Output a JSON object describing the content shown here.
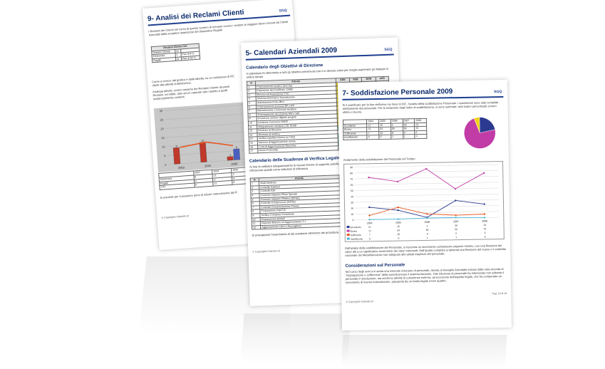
{
  "page1": {
    "title": "9- Analisi dei Reclami Clienti",
    "logo": "SGQ",
    "intro": "I Reclami dei Clienti nel corso di questo numero di mesane ovvero i reclami di maggior rilievo ricevuti da Clienti Aziendali dalla semplice riparazione del dispositivo Rugalli.",
    "table_header": "Reclami Cliente Ctrl",
    "table_rows": [
      [
        "Reclami Cliente",
        "12",
        ""
      ],
      [
        "Elettronica",
        "1",
        "Pari al 8 %"
      ],
      [
        "Rugalli",
        "11",
        "Pari al 92 %"
      ]
    ],
    "para2": "Come si evince dal grafico e dalla tabella, su un complesso di RC riferiti alla attività di Elettronica.",
    "para3": "Analoga attività, ovvero riesame dei Reclami Cliente da parte Reclami, ed infatti, oltre ad un naturale calo rispetto a quelli sostanzialmente costanti.",
    "legend_table": [
      [
        "",
        "2003",
        "2004",
        "2005"
      ],
      [
        "Elettronica",
        "9",
        "11",
        "2"
      ],
      [
        "Rugalli",
        "0",
        "0",
        "6"
      ],
      [
        "TOT",
        "9",
        "11",
        "8"
      ]
    ],
    "closing": "Si prevede per il prossimo anno di ridurre notevolmente tali R",
    "footer": "© Copyrights Fabrelet srl",
    "chart_data": {
      "type": "bar",
      "categories": [
        "2003",
        "2004",
        "2005"
      ],
      "series": [
        {
          "name": "Elettronica",
          "values": [
            9,
            11,
            2
          ],
          "color": "#c0392b"
        },
        {
          "name": "Rugalli",
          "values": [
            0,
            0,
            6
          ],
          "color": "#4a5fc1"
        },
        {
          "name": "TOT",
          "values": [
            9,
            11,
            8
          ],
          "color": "#e8541c"
        }
      ],
      "ylim": [
        0,
        30
      ],
      "yticks": [
        "0",
        "5",
        "10",
        "15",
        "20",
        "25",
        "30"
      ]
    }
  },
  "page2": {
    "title": "5- Calendari Aziendali 2009",
    "logo": "SGQ",
    "sub1": "Calendario degli Obiettivi di Direzione",
    "text1": "Il calendario fa riferimento a tutti gli obiettivi prevenivati con il in diverse colori per meglio esprimere gli impegni in ordine tempo",
    "cols": [
      "N",
      "Attività",
      "GEN",
      "FEB",
      "MAR",
      "APR"
    ],
    "rows1": [
      [
        "1",
        "Potenziamento Grafico del CSQ"
      ],
      [
        "2",
        "Estensione del Certificato 13485"
      ],
      [
        "3",
        "Ricerca ed Acquisizione TVC"
      ],
      [
        "4",
        "Sistema informativo di produzione"
      ],
      [
        "5",
        "Automazione front-office"
      ],
      [
        "6",
        "Potenziamento processi BP e RP"
      ],
      [
        "7",
        "Manutenzione e rinnovare struttura"
      ],
      [
        "8",
        "Potenziamento del sistema HW e SW"
      ],
      [
        "9",
        "Creazione archivio digitale progetti"
      ],
      [
        "10",
        "Iscrizione Consorzio RAEE"
      ],
      [
        "11",
        "Adeguamento struttura a DL 81/08"
      ],
      [
        "12",
        "Riunione di Riesame"
      ],
      [
        "13",
        "Riunione di Verifica"
      ],
      [
        "14",
        "Verifica Ispettiva Interna (a CSQ)"
      ],
      [
        "15",
        "Riunioni di Aggiornamento norme"
      ],
      [
        "16",
        "Corsi di Aggiornamento Macchine"
      ],
      [
        "17",
        "Nuovo Personale"
      ]
    ],
    "sub2": "Calendario delle Scadenze di Verifica Legale",
    "text2": "Al fine di calibrare adeguatamente le risorse interne di supporto pianificare anche le attività a carattere ripetitivo che influiscono qualità come indicatori di efficienza",
    "rows2": [
      [
        "1",
        "Visite Mediche"
      ],
      [
        "2",
        "Controllo Estintori"
      ],
      [
        "3",
        "Controllo 626"
      ],
      [
        "4",
        "Controllo Impianto Rifiuti Speciali"
      ],
      [
        "5",
        "Controllo Impianto Elettrico (DPSE)"
      ],
      [
        "6",
        "Controllo Compressore (DPSE)"
      ],
      [
        "7",
        "Controllo Documentazione Privacy"
      ],
      [
        "8",
        "Preparazione Dati F/A"
      ],
      [
        "9",
        "Verifica Completa Consulente"
      ],
      [
        "10",
        "Preparazione Modelli"
      ],
      [
        "11",
        "Deposito Bilancio ed Aggiornamento S.I."
      ],
      [
        "12",
        "Aggiornamento Libro e Raccoglitore"
      ]
    ],
    "text3": "Si presuppone l'inserimento di tali scadenze all'interno dei procedure, e Istruzioni Operative.",
    "footer": "© Copyrights Fabrelet srl"
  },
  "page3": {
    "title": "7- Soddisfazione Personale 2009",
    "logo": "SGQ",
    "intro": "Si è pianificato per la fine dell'anno nei mesi di DIC, l'analisi della soddisfazione Personale. I questionari sono stati compilati direttamente dal personale. Per la redazione degli indici di soddisfazione, si sono sommati i dati (valori percentuali) ovvero ottimo e buono.",
    "table": [
      [
        "",
        "2004",
        "2005",
        "2006",
        "2007",
        "2008"
      ],
      [
        "Eccellente",
        "21",
        "15",
        "2",
        "30",
        "23"
      ],
      [
        "Buono",
        "72",
        "64",
        "85",
        "50",
        "76"
      ],
      [
        "Sufficiente",
        "7",
        "20",
        "8",
        "5",
        "6"
      ],
      [
        "Insufficiente",
        "0",
        "0",
        "1",
        "1",
        "0"
      ]
    ],
    "chart_caption": "Andamento della soddisfazione del Personale nel Tempo",
    "pie_data": {
      "type": "pie",
      "values": [
        23,
        76,
        6,
        0
      ],
      "colors": [
        "#2b3a8f",
        "#c13ca7",
        "#f2d21b",
        "#4bb3d6"
      ]
    },
    "chart_data": {
      "type": "line",
      "x": [
        "2004",
        "2005",
        "2006",
        "2007",
        "2008"
      ],
      "series": [
        {
          "name": "Eccellente",
          "values": [
            21,
            15,
            2,
            30,
            23
          ],
          "color": "#2b3a8f"
        },
        {
          "name": "Buono",
          "values": [
            72,
            64,
            85,
            50,
            76
          ],
          "color": "#c13ca7"
        },
        {
          "name": "Sufficiente",
          "values": [
            7,
            20,
            8,
            5,
            6
          ],
          "color": "#e8541c"
        },
        {
          "name": "Insufficiente",
          "values": [
            0,
            0,
            1,
            1,
            0
          ],
          "color": "#4bb3d6"
        }
      ],
      "ylim": [
        0,
        90
      ],
      "yticks": [
        "0",
        "10",
        "20",
        "30",
        "40",
        "50",
        "60",
        "70",
        "80",
        "90"
      ]
    },
    "para1": "Dall'analisi della soddisfazione del Personale, si riscontra un incremento complessivo seppure minimo, con una flessione dei valori alti a un significativo incremento dei valori intermedi. Dall'analisi completa si lamenta una flessione del nuovo e il contratto nazionale dei Metalmeccanici non adeguato alle attuali esigenze del personale.",
    "sub": "Considerazioni sul Personale",
    "para2": "Nel corso degli anni si è avuta una notevole riduzione di personale, dovuta al travaglio Aziendale iniziato dalla nota vicenda di \"segregazione e sofferenza\" della società presso il sistema bancario. Tale riduzione di personale ha interessato non soltanto il personale in produzione, ma anche la attività di consulenza esterna, ad eccezione dell'aspetto legale, che ha comportato un incremento di risorse notevolissimo, passando da un livello legale a ben quattro.",
    "page_num": "Pag. 10 di 16",
    "footer": "© Copyrights Fabrelet srl"
  }
}
